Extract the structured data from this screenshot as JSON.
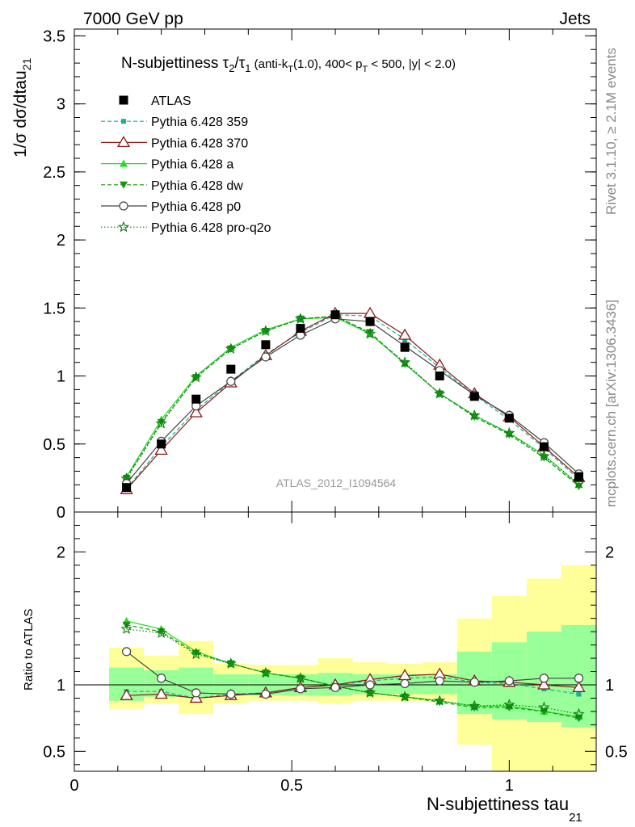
{
  "header": {
    "left": "7000 GeV pp",
    "right": "Jets"
  },
  "title": {
    "prefix": "N-subjettiness ",
    "tau2": "τ",
    "tau2_sub": "2",
    "slash": "/",
    "tau1": "τ",
    "tau1_sub": "1",
    "cut_a": " (anti-k",
    "cut_a_sub": "T",
    "cut_b": "(1.0), 400< p",
    "cut_b_sub": "T",
    "cut_c": " < 500, |y| < 2.0)"
  },
  "ylabel_main": {
    "text": "1/σ dσ/dtau",
    "sub": "21"
  },
  "ylabel_ratio": "Ratio to ATLAS",
  "xlabel": {
    "text": "N-subjettiness tau",
    "sub": "21"
  },
  "side_labels": {
    "rivet": "Rivet 3.1.10, ≥ 2.1M events",
    "mcplots": "mcplots.cern.ch [arXiv:1306.3436]"
  },
  "watermark": "ATLAS_2012_I1094564",
  "colors": {
    "data": "#000000",
    "p359": "#1aaf8f",
    "p370": "#8b1a1a",
    "pa": "#22dd22",
    "pdw": "#119911",
    "pp0": "#444444",
    "pq2o": "#117711",
    "band_yellow": "#ffff99",
    "band_green": "#99ff99"
  },
  "chart_data": {
    "type": "line",
    "x": [
      0.12,
      0.2,
      0.28,
      0.36,
      0.44,
      0.52,
      0.6,
      0.68,
      0.76,
      0.84,
      0.92,
      1.0,
      1.08,
      1.16
    ],
    "x_ticks": [
      "0",
      "0.5",
      "1"
    ],
    "xlim": [
      0,
      1.2
    ],
    "ylim_main": [
      0,
      3.55
    ],
    "y_ticks_main": [
      "0",
      "0.5",
      "1",
      "1.5",
      "2",
      "2.5",
      "3",
      "3.5"
    ],
    "ylim_ratio": [
      0.35,
      2.3
    ],
    "y_ticks_ratio": [
      "0.5",
      "1",
      "2"
    ],
    "legend_position": "top-left",
    "series": [
      {
        "key": "data",
        "name": "ATLAS",
        "values": [
          0.18,
          0.5,
          0.83,
          1.05,
          1.23,
          1.35,
          1.45,
          1.4,
          1.21,
          1.0,
          0.85,
          0.69,
          0.48,
          0.26
        ]
      },
      {
        "key": "p359",
        "name": "Pythia 6.428 359",
        "values": [
          0.17,
          0.48,
          0.75,
          0.96,
          1.16,
          1.32,
          1.45,
          1.44,
          1.27,
          1.06,
          0.86,
          0.68,
          0.47,
          0.24
        ]
      },
      {
        "key": "p370",
        "name": "Pythia 6.428 370",
        "values": [
          0.165,
          0.455,
          0.73,
          0.95,
          1.15,
          1.33,
          1.46,
          1.46,
          1.3,
          1.08,
          0.87,
          0.7,
          0.48,
          0.255
        ]
      },
      {
        "key": "pa",
        "name": "Pythia 6.428 a",
        "values": [
          0.26,
          0.68,
          1.0,
          1.21,
          1.34,
          1.42,
          1.43,
          1.31,
          1.09,
          0.87,
          0.71,
          0.58,
          0.42,
          0.2
        ]
      },
      {
        "key": "pdw",
        "name": "Pythia 6.428 dw",
        "values": [
          0.25,
          0.66,
          0.99,
          1.2,
          1.33,
          1.42,
          1.44,
          1.32,
          1.09,
          0.87,
          0.7,
          0.57,
          0.4,
          0.19
        ]
      },
      {
        "key": "pp0",
        "name": "Pythia 6.428 p0",
        "values": [
          0.21,
          0.52,
          0.78,
          0.96,
          1.14,
          1.3,
          1.42,
          1.4,
          1.22,
          1.04,
          0.86,
          0.71,
          0.51,
          0.28
        ]
      },
      {
        "key": "pq2o",
        "name": "Pythia 6.428 pro-q2o",
        "values": [
          0.245,
          0.65,
          0.99,
          1.2,
          1.33,
          1.42,
          1.44,
          1.31,
          1.1,
          0.87,
          0.71,
          0.58,
          0.41,
          0.21
        ]
      }
    ],
    "ratio": {
      "p359": [
        0.95,
        0.95,
        0.9,
        0.93,
        0.94,
        0.98,
        1.0,
        1.03,
        1.05,
        1.06,
        1.02,
        1.01,
        0.97,
        0.93
      ],
      "p370": [
        0.92,
        0.93,
        0.9,
        0.92,
        0.94,
        0.98,
        1.0,
        1.04,
        1.07,
        1.08,
        1.03,
        1.02,
        1.0,
        0.98
      ],
      "pa": [
        1.48,
        1.42,
        1.25,
        1.16,
        1.09,
        1.05,
        0.99,
        0.94,
        0.91,
        0.88,
        0.84,
        0.84,
        0.8,
        0.76
      ],
      "pdw": [
        1.45,
        1.4,
        1.24,
        1.16,
        1.09,
        1.05,
        0.99,
        0.94,
        0.91,
        0.87,
        0.83,
        0.83,
        0.8,
        0.75
      ],
      "pp0": [
        1.25,
        1.05,
        0.94,
        0.93,
        0.93,
        0.97,
        0.98,
        1.0,
        1.01,
        1.03,
        1.02,
        1.03,
        1.05,
        1.05
      ],
      "pq2o": [
        1.42,
        1.39,
        1.23,
        1.16,
        1.09,
        1.05,
        0.99,
        0.94,
        0.91,
        0.88,
        0.84,
        0.85,
        0.83,
        0.78
      ]
    },
    "bands": {
      "x_edges": [
        0.08,
        0.16,
        0.24,
        0.32,
        0.4,
        0.48,
        0.56,
        0.64,
        0.72,
        0.8,
        0.88,
        0.96,
        1.04,
        1.12,
        1.2
      ],
      "yellow_lo": [
        0.82,
        0.86,
        0.78,
        0.86,
        0.88,
        0.88,
        0.86,
        0.88,
        0.88,
        0.88,
        0.55,
        0.3,
        0.3,
        0.3
      ],
      "yellow_hi": [
        1.28,
        1.22,
        1.33,
        1.16,
        1.15,
        1.15,
        1.2,
        1.17,
        1.16,
        1.17,
        1.5,
        1.67,
        1.8,
        1.9
      ],
      "green_lo": [
        0.88,
        0.91,
        0.91,
        0.92,
        0.92,
        0.92,
        0.92,
        0.93,
        0.93,
        0.93,
        0.78,
        0.74,
        0.72,
        0.68
      ],
      "green_hi": [
        1.13,
        1.11,
        1.13,
        1.08,
        1.08,
        1.08,
        1.09,
        1.08,
        1.08,
        1.08,
        1.25,
        1.32,
        1.4,
        1.45
      ]
    }
  }
}
